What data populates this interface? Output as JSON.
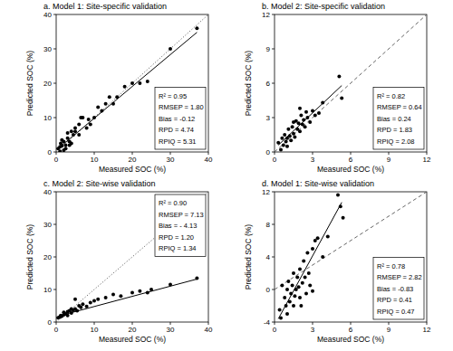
{
  "chart_data": [
    {
      "type": "scatter",
      "title": "a. Model 1: Site-specific validation",
      "x_label": "Measured SOC (%)",
      "y_label": "Predicted SOC (%)",
      "xlim": [
        0,
        40
      ],
      "ylim": [
        0,
        40
      ],
      "xticks": [
        0,
        10,
        20,
        30,
        40
      ],
      "yticks": [
        0,
        10,
        20,
        30,
        40
      ],
      "grid": false,
      "legend": "lower right",
      "color": "#000000",
      "marker": "circle",
      "x": [
        0.5,
        1,
        1,
        1.2,
        1.5,
        1.5,
        2,
        2,
        2.5,
        2.5,
        3,
        3,
        3.5,
        3.5,
        4,
        4,
        4.5,
        5,
        5,
        6,
        6,
        6.5,
        7,
        8,
        8.5,
        9,
        10,
        11,
        12,
        13,
        14,
        15,
        16,
        18,
        20,
        22,
        24,
        30,
        37
      ],
      "values": [
        1,
        0.2,
        1.5,
        2.5,
        1.8,
        3.5,
        0.5,
        3,
        1,
        2,
        4,
        5.5,
        3,
        2,
        2.5,
        6,
        5,
        6,
        7,
        5,
        8,
        10,
        10,
        7,
        9.5,
        8,
        10,
        13,
        12,
        14,
        16,
        14,
        16,
        19,
        20,
        20,
        20.5,
        30,
        36
      ],
      "fit_line": {
        "x": [
          0.5,
          37
        ],
        "values": [
          1,
          34.8
        ],
        "line_style": "solid"
      },
      "reference_line": {
        "x": [
          0,
          40
        ],
        "values": [
          0,
          40
        ],
        "line_style": "dotted"
      },
      "annotations": [
        "R² = 0.95",
        "RMSEP = 1.80",
        "Bias = -0.12",
        "RPD = 4.74",
        "RPIQ = 5.31"
      ]
    },
    {
      "type": "scatter",
      "title": "b. Model 2: Site-specific validation",
      "x_label": "Measured SOC (%)",
      "y_label": "Predicted SOC (%)",
      "xlim": [
        0,
        12
      ],
      "ylim": [
        0,
        12
      ],
      "xticks": [
        0,
        3,
        6,
        9,
        12
      ],
      "yticks": [
        0,
        3,
        6,
        9,
        12
      ],
      "grid": false,
      "legend": "lower right",
      "color": "#000000",
      "marker": "circle",
      "x": [
        0.3,
        0.5,
        0.6,
        0.7,
        0.8,
        0.9,
        1,
        1,
        1.1,
        1.2,
        1.3,
        1.4,
        1.5,
        1.5,
        1.6,
        1.7,
        1.8,
        1.9,
        2,
        2,
        2.1,
        2.2,
        2.3,
        2.4,
        2.5,
        2.6,
        2.8,
        3,
        3.2,
        3.5,
        3.8,
        5.1,
        5.3
      ],
      "values": [
        0.8,
        0.2,
        1.2,
        0.6,
        1.5,
        0.9,
        1.2,
        0.5,
        2,
        1.4,
        1,
        2.2,
        1.6,
        2.6,
        1.3,
        2.7,
        2,
        2.5,
        1.8,
        3.8,
        3.2,
        2.4,
        2.8,
        2.2,
        3.5,
        3,
        2.6,
        3.6,
        3.2,
        3.4,
        4.3,
        6.6,
        4.7
      ],
      "fit_line": {
        "x": [
          0.3,
          5.3
        ],
        "values": [
          0.6,
          5.8
        ],
        "line_style": "solid"
      },
      "reference_line": {
        "x": [
          0,
          12
        ],
        "values": [
          0,
          12
        ],
        "line_style": "dashed"
      },
      "annotations": [
        "R² = 0.82",
        "RMSEP = 0.64",
        "Bias = 0.24",
        "RPD = 1.83",
        "RPIQ = 2.08"
      ]
    },
    {
      "type": "scatter",
      "title": "c. Model 2: Site-wise validation",
      "x_label": "Measured SOC (%)",
      "y_label": "Predicted SOC (%)",
      "xlim": [
        0,
        40
      ],
      "ylim": [
        0,
        40
      ],
      "xticks": [
        0,
        10,
        20,
        30,
        40
      ],
      "yticks": [
        0,
        10,
        20,
        30,
        40
      ],
      "grid": false,
      "legend": "upper right",
      "color": "#000000",
      "marker": "circle",
      "x": [
        0.5,
        1,
        1.2,
        1.5,
        2,
        2,
        2.5,
        3,
        3,
        3.5,
        4,
        4,
        4.5,
        5,
        5,
        5.5,
        6,
        6.5,
        7,
        8,
        9,
        10,
        11,
        13,
        15,
        17,
        20,
        22,
        24,
        25,
        30,
        37
      ],
      "values": [
        1.3,
        1.5,
        2,
        1.8,
        2.2,
        3,
        2.5,
        3.2,
        2,
        3.5,
        4,
        2.8,
        3.6,
        4,
        7,
        3.5,
        5,
        4.5,
        5.5,
        4.8,
        6,
        6.5,
        7,
        7.5,
        8.5,
        8,
        9,
        9.5,
        9,
        10,
        11.5,
        13.5
      ],
      "fit_line": {
        "x": [
          0.5,
          37
        ],
        "values": [
          1.8,
          13.2
        ],
        "line_style": "solid"
      },
      "reference_line": {
        "x": [
          0,
          40
        ],
        "values": [
          0,
          40
        ],
        "line_style": "dotted"
      },
      "annotations": [
        "R² = 0.90",
        "RMSEP = 7.13",
        "Bias = - 4.13",
        "RPD = 1.20",
        "RPIQ = 1.34"
      ]
    },
    {
      "type": "scatter",
      "title": "d. Model 1: Site-wise validation",
      "x_label": "Measured SOC (%)",
      "y_label": "Predicted SOC (%)",
      "xlim": [
        0,
        12
      ],
      "ylim": [
        -4,
        12
      ],
      "xticks": [
        0,
        3,
        6,
        9,
        12
      ],
      "yticks": [
        -4,
        0,
        4,
        8,
        12
      ],
      "grid": false,
      "legend": "lower right",
      "color": "#000000",
      "marker": "circle",
      "x": [
        0.4,
        0.5,
        0.6,
        0.8,
        0.9,
        1,
        1,
        1.1,
        1.2,
        1.3,
        1.4,
        1.5,
        1.5,
        1.6,
        1.7,
        1.8,
        1.9,
        2,
        2,
        2.1,
        2.2,
        2.3,
        2.4,
        2.5,
        2.6,
        2.7,
        2.8,
        3,
        3,
        3.2,
        3.4,
        3.8,
        4.2,
        5,
        5.2,
        5.4
      ],
      "values": [
        -2.5,
        -3.5,
        0.5,
        -1,
        -2,
        0,
        -3,
        1,
        -1.5,
        -0.5,
        0.5,
        -2,
        2,
        -0.8,
        0,
        1.5,
        0.3,
        -1,
        2.5,
        -2,
        0.8,
        3.5,
        1.5,
        -0.5,
        4.5,
        2,
        0.5,
        5,
        -0.2,
        6,
        6.3,
        4,
        6.5,
        11.6,
        10.2,
        8.8
      ],
      "fit_line": {
        "x": [
          0.3,
          5.3
        ],
        "values": [
          -3.6,
          10.7
        ],
        "line_style": "solid"
      },
      "reference_line": {
        "x": [
          0,
          12
        ],
        "values": [
          0,
          12
        ],
        "line_style": "dashed"
      },
      "annotations": [
        "R² = 0.78",
        "RMSEP = 2.82",
        "Bias = -0.83",
        "RPD = 0.41",
        "RPIQ = 0.47"
      ]
    }
  ]
}
